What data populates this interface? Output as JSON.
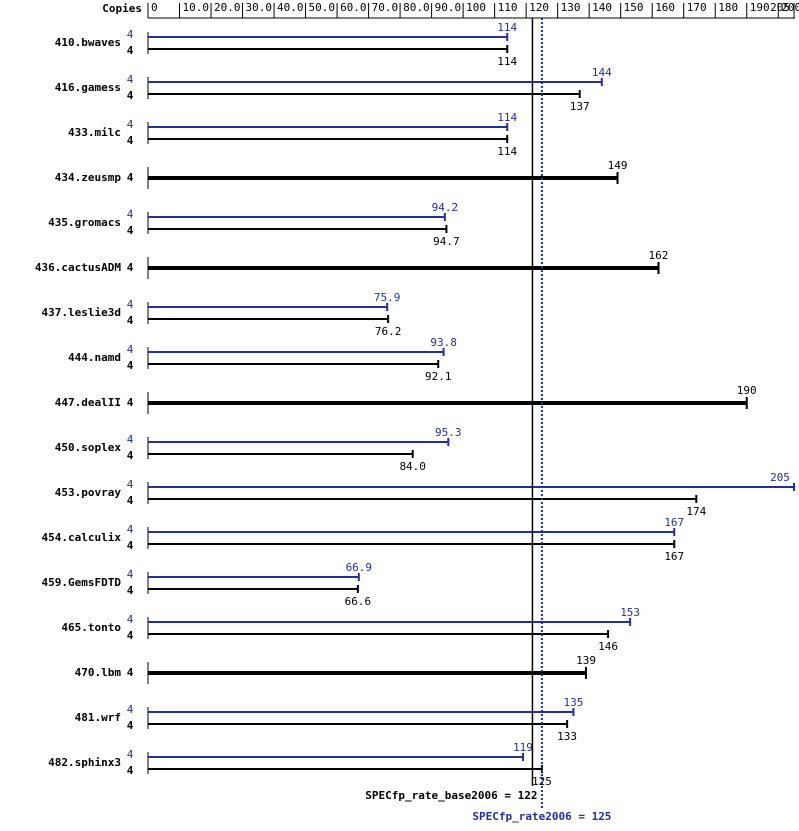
{
  "chart_data": {
    "type": "bar",
    "orientation": "horizontal",
    "copies_header": "Copies",
    "categories": [
      "410.bwaves",
      "416.gamess",
      "433.milc",
      "434.zeusmp",
      "435.gromacs",
      "436.cactusADM",
      "437.leslie3d",
      "444.namd",
      "447.dealII",
      "450.soplex",
      "453.povray",
      "454.calculix",
      "459.GemsFDTD",
      "465.tonto",
      "470.lbm",
      "481.wrf",
      "482.sphinx3"
    ],
    "series": [
      {
        "color": "#2030a0",
        "values": [
          114,
          144,
          114,
          null,
          94.2,
          null,
          75.9,
          93.8,
          null,
          95.3,
          205,
          167,
          66.9,
          153,
          null,
          135,
          119
        ],
        "copies": [
          4,
          4,
          4,
          null,
          4,
          null,
          4,
          4,
          null,
          4,
          4,
          4,
          4,
          4,
          null,
          4,
          4
        ]
      },
      {
        "color": "#000000",
        "values": [
          114,
          137,
          114,
          149,
          94.7,
          162,
          76.2,
          92.1,
          190,
          84,
          174,
          167,
          66.6,
          146,
          139,
          133,
          125
        ],
        "value_labels": [
          "114",
          "137",
          "114",
          "149",
          "94.7",
          "162",
          "76.2",
          "92.1",
          "190",
          "84.0",
          "174",
          "167",
          "66.6",
          "146",
          "139",
          "133",
          "125"
        ],
        "copies": [
          4,
          4,
          4,
          4,
          4,
          4,
          4,
          4,
          4,
          4,
          4,
          4,
          4,
          4,
          4,
          4,
          4
        ]
      }
    ],
    "xlim": [
      0,
      205
    ],
    "xticks": [
      0,
      {
        "value": 10,
        "label": "10.0"
      },
      {
        "value": 20,
        "label": "20.0"
      },
      {
        "value": 30,
        "label": "30.0"
      },
      {
        "value": 40,
        "label": "40.0"
      },
      {
        "value": 50,
        "label": "50.0"
      },
      {
        "value": 60,
        "label": "60.0"
      },
      {
        "value": 70,
        "label": "70.0"
      },
      {
        "value": 80,
        "label": "80.0"
      },
      {
        "value": 90,
        "label": "90.0"
      },
      100,
      110,
      120,
      130,
      140,
      150,
      160,
      170,
      180,
      190,
      200,
      205
    ],
    "reference_lines": [
      {
        "label": "SPECfp_rate_base2006 = 122",
        "value": 122,
        "color": "#000000",
        "style": "solid"
      },
      {
        "label": "SPECfp_rate2006 = 125",
        "value": 125,
        "color": "#2030a0",
        "style": "dotted"
      }
    ]
  }
}
